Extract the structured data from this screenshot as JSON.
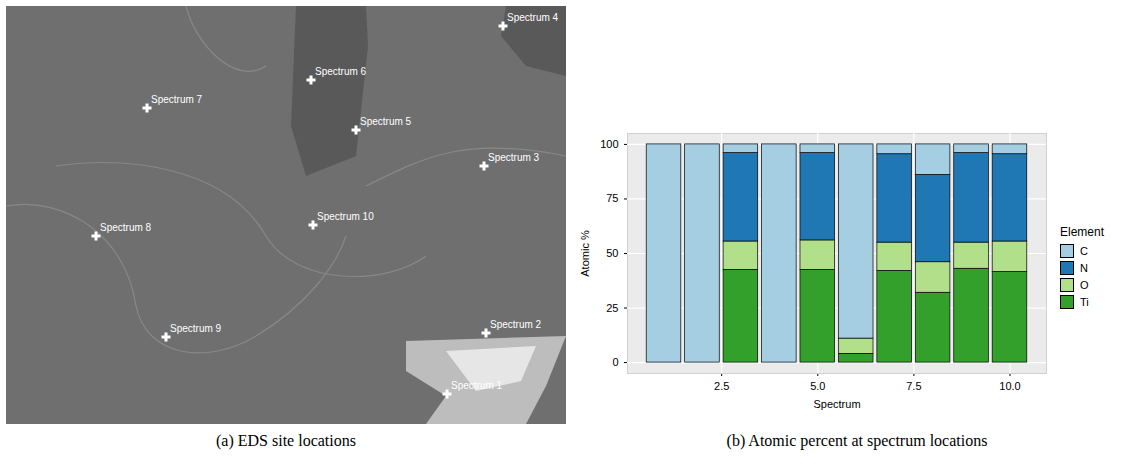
{
  "chart_data": {
    "type": "bar",
    "stacked": true,
    "caption": "(b) Atomic percent at spectrum locations",
    "x_label": "Spectrum",
    "y_label": "Atomic %",
    "x": [
      1,
      2,
      3,
      4,
      5,
      6,
      7,
      8,
      9,
      10
    ],
    "xlim": [
      0.05,
      10.95
    ],
    "xticks": [
      2.5,
      {
        "value": 5,
        "label": "5.0"
      },
      7.5,
      {
        "value": 10,
        "label": "10.0"
      }
    ],
    "ylim": [
      -5,
      105
    ],
    "yticks": [
      0,
      25,
      50,
      75,
      100
    ],
    "grid": true,
    "legend": "right",
    "legend_title": "Element",
    "series": [
      {
        "name": "C",
        "color": "#a6cee3",
        "values": [
          100,
          100,
          4,
          100,
          4,
          89,
          4.5,
          14,
          4,
          4.5
        ]
      },
      {
        "name": "N",
        "color": "#1f78b4",
        "values": [
          0,
          0,
          40.5,
          0,
          40,
          0,
          40.5,
          40,
          41,
          40
        ]
      },
      {
        "name": "O",
        "color": "#b2df8a",
        "values": [
          0,
          0,
          13,
          0,
          13.5,
          7,
          13,
          14,
          12,
          14
        ]
      },
      {
        "name": "Ti",
        "color": "#33a02c",
        "values": [
          0,
          0,
          42.5,
          0,
          42.5,
          4,
          42,
          32,
          43,
          41.5
        ]
      }
    ]
  },
  "image": {
    "caption": "(a) EDS site locations",
    "labels": [
      "Spectrum 1",
      "Spectrum 2",
      "Spectrum 3",
      "Spectrum 4",
      "Spectrum 5",
      "Spectrum 6",
      "Spectrum 7",
      "Spectrum 8",
      "Spectrum 9",
      "Spectrum 10"
    ]
  }
}
